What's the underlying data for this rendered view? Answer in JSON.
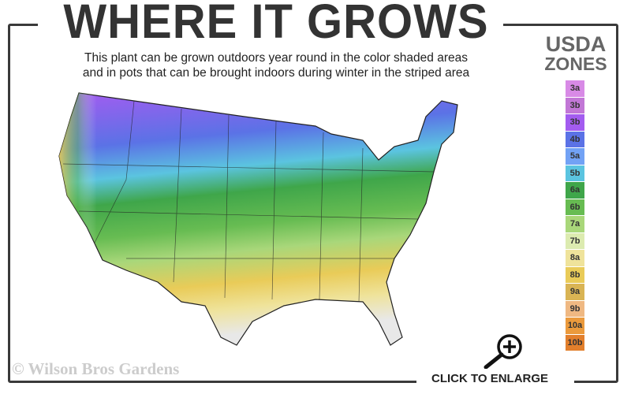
{
  "header": {
    "title": "WHERE IT GROWS",
    "subtitle_line1": "This plant can be grown outdoors year round in the color shaded areas",
    "subtitle_line2": "and in pots that can be brought indoors during winter in the striped area"
  },
  "legend": {
    "title_line1": "USDA",
    "title_line2": "ZONES",
    "zones": [
      {
        "label": "3a",
        "color": "#d88ae6"
      },
      {
        "label": "3b",
        "color": "#c277d6"
      },
      {
        "label": "3b",
        "color": "#a35cf0"
      },
      {
        "label": "4b",
        "color": "#5b72e6"
      },
      {
        "label": "5a",
        "color": "#72a2f5"
      },
      {
        "label": "5b",
        "color": "#5bc4e0"
      },
      {
        "label": "6a",
        "color": "#3fa64a"
      },
      {
        "label": "6b",
        "color": "#67bc52"
      },
      {
        "label": "7a",
        "color": "#a9d77a"
      },
      {
        "label": "7b",
        "color": "#dcebb0"
      },
      {
        "label": "8a",
        "color": "#efe39b"
      },
      {
        "label": "8b",
        "color": "#e9cb58"
      },
      {
        "label": "9a",
        "color": "#d9b454"
      },
      {
        "label": "9b",
        "color": "#efb882"
      },
      {
        "label": "10a",
        "color": "#eb9a3c"
      },
      {
        "label": "10b",
        "color": "#e27f2c"
      }
    ]
  },
  "footer": {
    "copyright": "© Wilson Bros Gardens",
    "enlarge_label": "CLICK TO ENLARGE",
    "enlarge_icon": "magnifier-plus-icon"
  }
}
